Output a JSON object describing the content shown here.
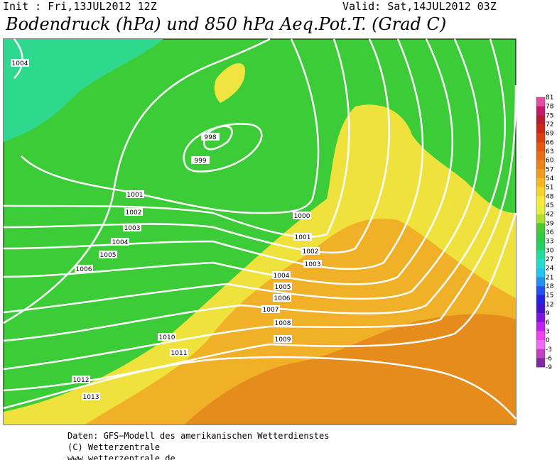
{
  "header": {
    "init": "Init : Fri,13JUL2012 12Z",
    "valid": "Valid: Sat,14JUL2012 03Z",
    "title": "Bodendruck (hPa) und 850 hPa Aeq.Pot.T. (Grad C)"
  },
  "isobar_labels": [
    "1004",
    "998",
    "999",
    "1000",
    "1001",
    "1001",
    "1002",
    "1002",
    "1003",
    "1003",
    "1004",
    "1004",
    "1005",
    "1005",
    "1006",
    "1006",
    "1007",
    "1008",
    "1009",
    "1010",
    "1011",
    "1012",
    "1013"
  ],
  "colorbar": {
    "labels": [
      "81",
      "78",
      "75",
      "72",
      "69",
      "66",
      "63",
      "60",
      "57",
      "54",
      "51",
      "48",
      "45",
      "42",
      "39",
      "36",
      "33",
      "30",
      "27",
      "24",
      "21",
      "18",
      "15",
      "12",
      "9",
      "6",
      "3",
      "0",
      "-3",
      "-6",
      "-9"
    ],
    "colors": [
      "#e84aa8",
      "#c8186a",
      "#b81a2e",
      "#cc2616",
      "#dc3e10",
      "#e65610",
      "#e86c16",
      "#ea8418",
      "#f09c1e",
      "#f6b822",
      "#f8d42a",
      "#fcea3a",
      "#e6ee3e",
      "#aee030",
      "#4cc830",
      "#2ecc40",
      "#22d062",
      "#22dc9e",
      "#22dcd0",
      "#22c4f0",
      "#2290f0",
      "#2252f0",
      "#2222e0",
      "#4212d0",
      "#8012e0",
      "#c020f0",
      "#f040f0",
      "#f468f8",
      "#c040c0",
      "#802aa0"
    ]
  },
  "footer": {
    "line1": "Daten: GFS−Modell des amerikanischen Wetterdienstes",
    "line2": "(C) Wetterzentrale",
    "line3": "www.wetterzentrale.de"
  }
}
